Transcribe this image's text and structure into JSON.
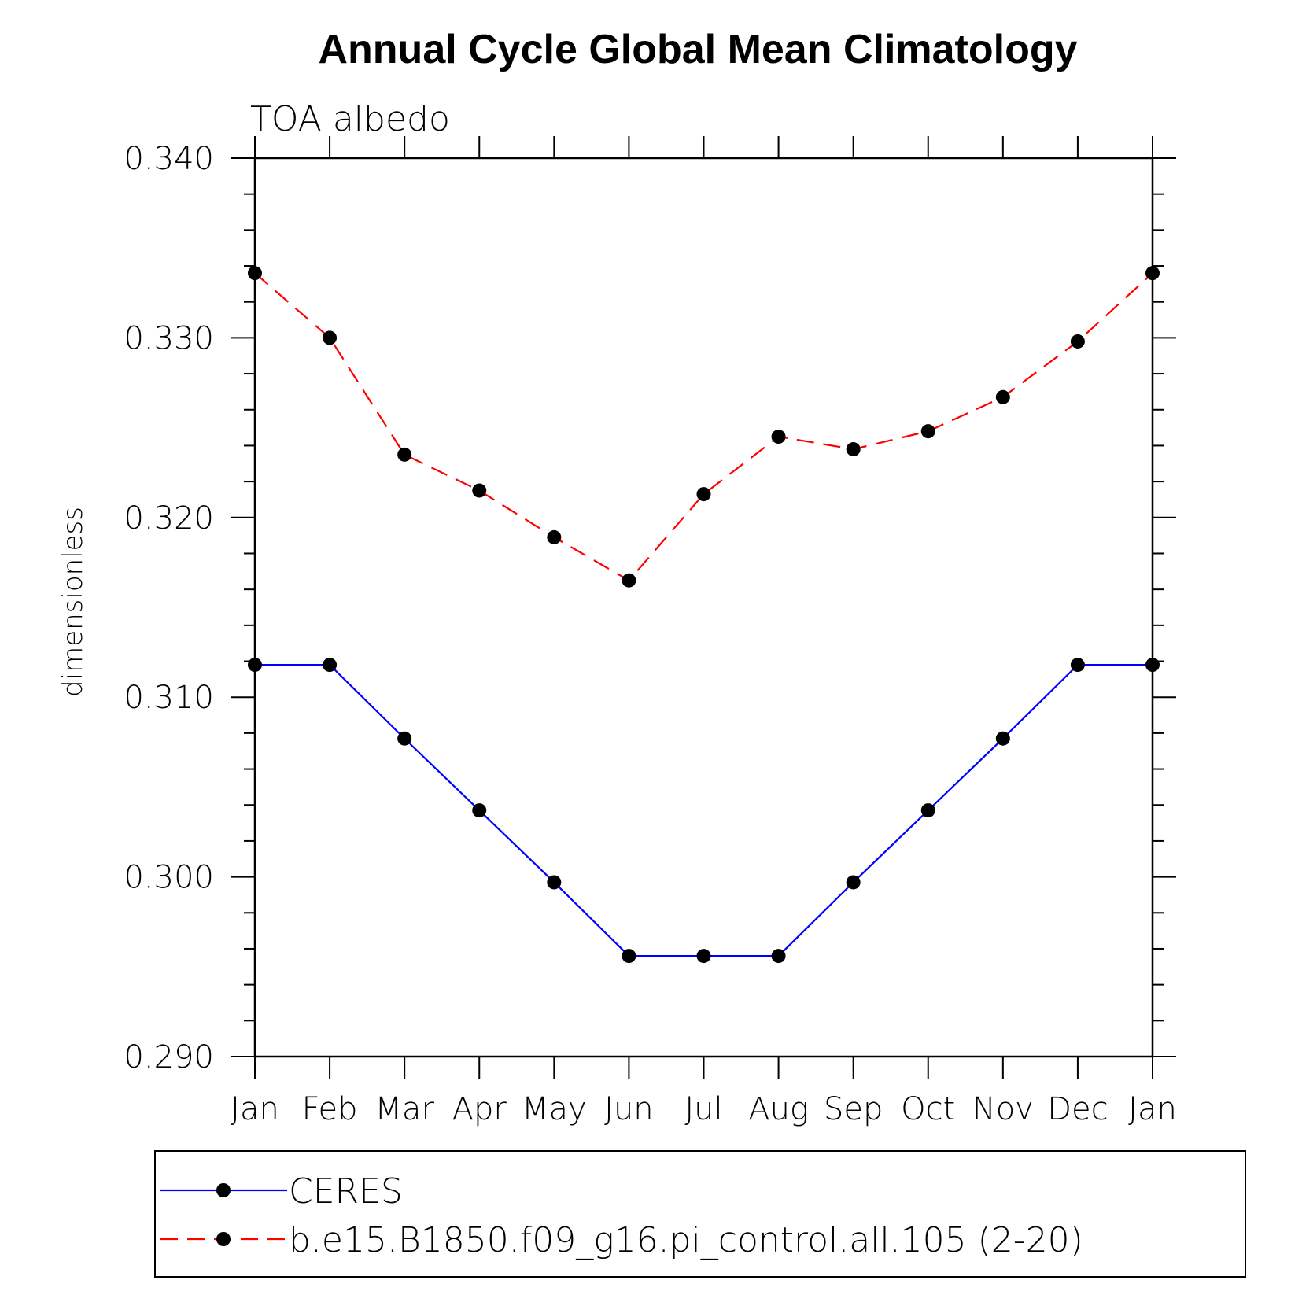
{
  "chart_data": {
    "type": "line",
    "title": "Annual Cycle Global Mean Climatology",
    "subtitle": "TOA albedo",
    "xlabel": "",
    "ylabel": "dimensionless",
    "categories": [
      "Jan",
      "Feb",
      "Mar",
      "Apr",
      "May",
      "Jun",
      "Jul",
      "Aug",
      "Sep",
      "Oct",
      "Nov",
      "Dec",
      "Jan"
    ],
    "ylim": [
      0.29,
      0.34
    ],
    "yticks": [
      "0.290",
      "0.300",
      "0.310",
      "0.320",
      "0.330",
      "0.340"
    ],
    "grid": false,
    "legend": "bottom",
    "series": [
      {
        "name": "CERES",
        "color": "#0000ff",
        "dash": "solid",
        "marker": "filled-circle",
        "values": [
          0.3118,
          0.3118,
          0.3077,
          0.3037,
          0.2997,
          0.2956,
          0.2956,
          0.2956,
          0.2997,
          0.3037,
          0.3077,
          0.3118,
          0.3118
        ]
      },
      {
        "name": "b.e15.B1850.f09_g16.pi_control.all.105 (2-20)",
        "color": "#ff0000",
        "dash": "dashed",
        "marker": "filled-circle",
        "values": [
          0.3336,
          0.33,
          0.3235,
          0.3215,
          0.3189,
          0.3165,
          0.3213,
          0.3245,
          0.3238,
          0.3248,
          0.3267,
          0.3298,
          0.3336
        ]
      }
    ]
  }
}
